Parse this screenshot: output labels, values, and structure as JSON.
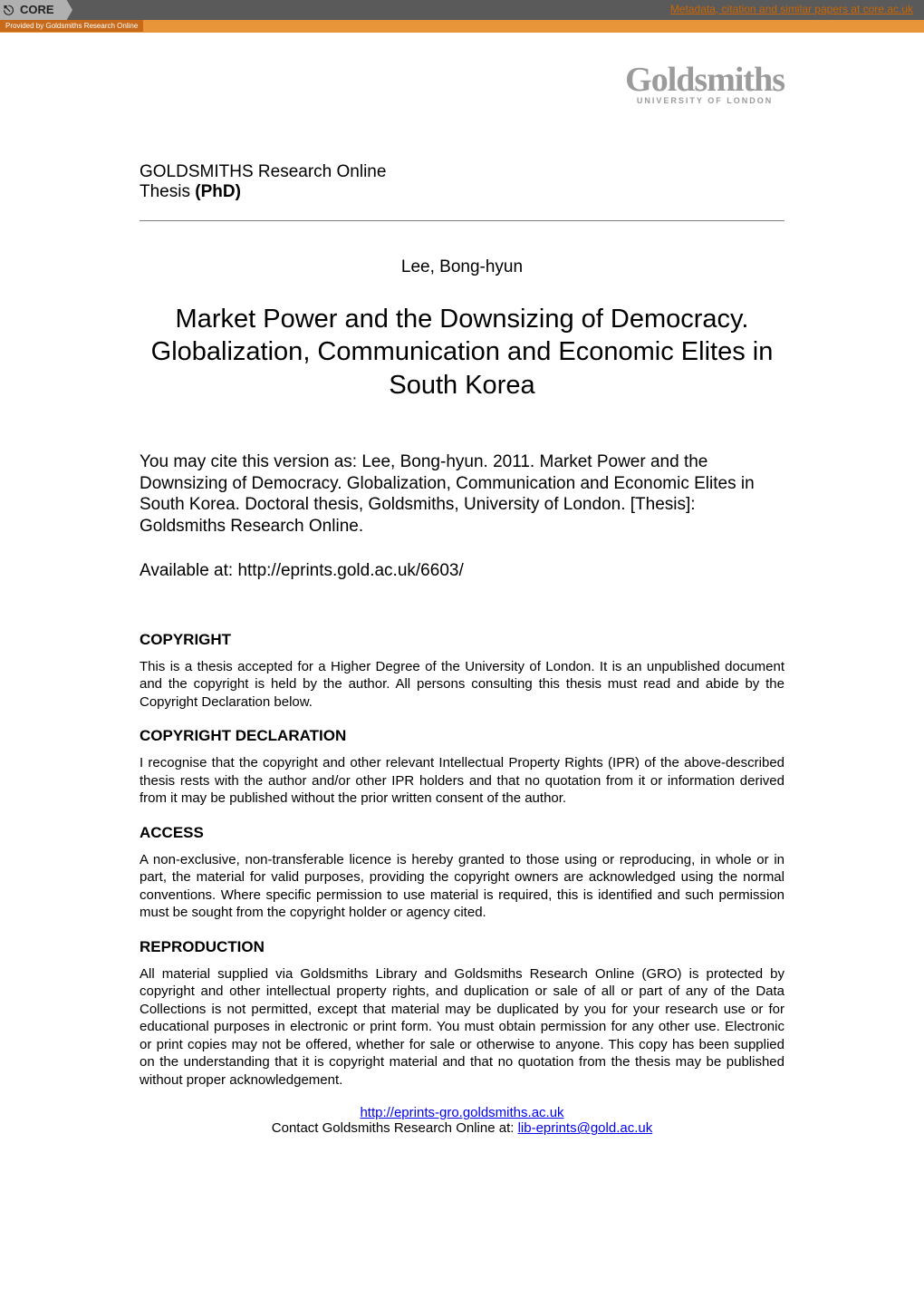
{
  "banner": {
    "core_label": "CORE",
    "metadata_link": "Metadata, citation and similar papers at core.ac.uk",
    "provided_by": "Provided by Goldsmiths Research Online",
    "colors": {
      "banner_bg": "#5a5a5a",
      "orange_bar": "#e8953a",
      "provided_bg": "#c96a1a",
      "metadata_link": "#cc6600",
      "core_badge_bg": "#b0b0b0"
    }
  },
  "logo": {
    "main": "Goldsmiths",
    "sub": "UNIVERSITY OF LONDON",
    "color": "#9b9b9b"
  },
  "header": {
    "line1": "GOLDSMITHS Research Online",
    "line2_prefix": "Thesis ",
    "line2_bold": "(PhD)"
  },
  "author": "Lee, Bong-hyun",
  "title": "Market Power and the Downsizing of Democracy. Globalization, Communication and Economic Elites in South Korea",
  "citation": "You may cite this version as: Lee, Bong-hyun. 2011. Market Power and the Downsizing of Democracy. Globalization, Communication and Economic Elites in South Korea. Doctoral thesis, Goldsmiths, University of London. [Thesis]: Goldsmiths Research Online.",
  "available_prefix": "Available at: ",
  "available_url": "http://eprints.gold.ac.uk/6603/",
  "sections": {
    "copyright": {
      "heading": "COPYRIGHT",
      "body": "This is a thesis accepted for a Higher Degree of the University of London. It is an unpublished document and the copyright is held by the author. All persons consulting this thesis must read and abide by the Copyright Declaration below."
    },
    "declaration": {
      "heading": "COPYRIGHT DECLARATION",
      "body": "I recognise that the copyright and other relevant Intellectual Property Rights (IPR) of the above-described thesis rests with the author and/or other IPR holders and that no quotation from it or information derived from it may be published without the prior written consent of the author."
    },
    "access": {
      "heading": "ACCESS",
      "body": "A non-exclusive, non-transferable licence is hereby granted to those using or reproducing, in whole or in part, the material for valid purposes, providing the copyright owners are acknowledged using the normal conventions. Where specific permission to use material is required, this is identified and such permission must be sought from the copyright holder or agency cited."
    },
    "reproduction": {
      "heading": "REPRODUCTION",
      "body": "All material supplied via Goldsmiths Library and Goldsmiths Research Online (GRO) is protected by copyright and other intellectual property rights, and duplication or sale of all or part of any of the Data Collections is not permitted, except that material may be duplicated by you for your research use or for educational purposes in electronic or print form. You must obtain permission for any other use. Electronic or print copies may not be offered, whether for sale or otherwise to anyone. This copy has been supplied on the understanding that it is copyright material and that no quotation from the thesis may be published without proper acknowledgement."
    }
  },
  "footer": {
    "repo_url": "http://eprints-gro.goldsmiths.ac.uk",
    "contact_prefix": "Contact Goldsmiths Research Online at: ",
    "contact_email": "lib-eprints@gold.ac.uk",
    "link_color": "#0000ee"
  },
  "typography": {
    "body_font": "Arial, Helvetica, sans-serif",
    "title_fontsize": 29,
    "citation_fontsize": 19,
    "heading_fontsize": 17,
    "body_fontsize": 15
  }
}
